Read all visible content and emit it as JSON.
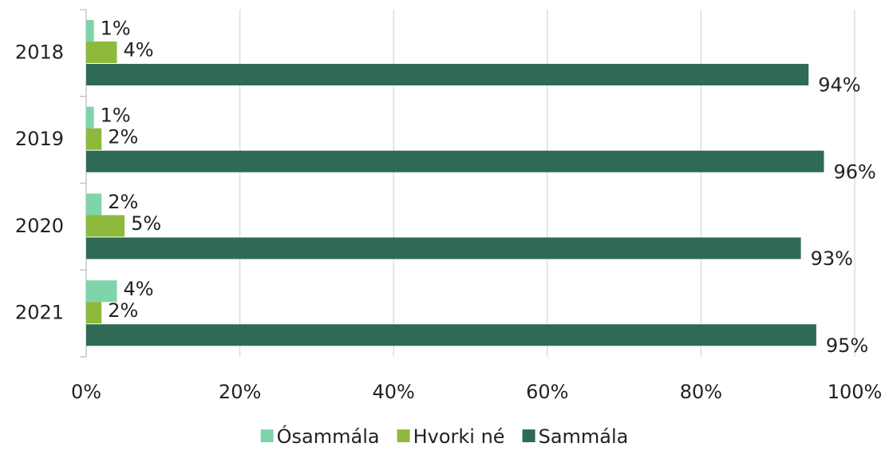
{
  "chart_data": {
    "type": "hbar",
    "categories": [
      "2018",
      "2019",
      "2020",
      "2021"
    ],
    "series": [
      {
        "name": "Ósammála",
        "color": "#7fd4aa",
        "values": [
          1,
          1,
          2,
          4
        ],
        "value_labels": [
          "1%",
          "1%",
          "2%",
          "4%"
        ]
      },
      {
        "name": "Hvorki né",
        "color": "#8dba3c",
        "values": [
          4,
          2,
          5,
          2
        ],
        "value_labels": [
          "4%",
          "2%",
          "5%",
          "2%"
        ]
      },
      {
        "name": "Sammála",
        "color": "#2f6a55",
        "values": [
          94,
          96,
          93,
          95
        ],
        "value_labels": [
          "94%",
          "96%",
          "93%",
          "95%"
        ]
      }
    ],
    "xlim": [
      0,
      100
    ],
    "xticks": [
      {
        "value": 0,
        "label": "0%"
      },
      {
        "value": 20,
        "label": "20%"
      },
      {
        "value": 40,
        "label": "40%"
      },
      {
        "value": 60,
        "label": "60%"
      },
      {
        "value": 80,
        "label": "80%"
      },
      {
        "value": 100,
        "label": "100%"
      }
    ],
    "grid": true,
    "legend": "bottom"
  }
}
